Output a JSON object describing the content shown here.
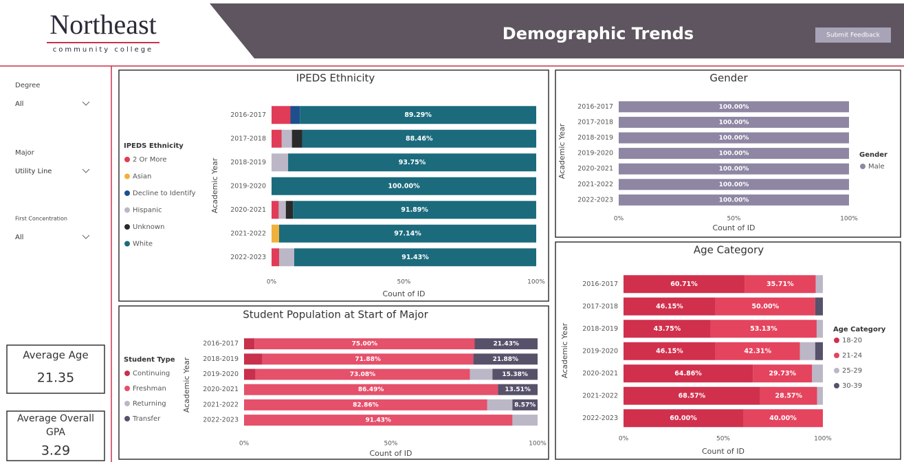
{
  "header": {
    "logo_name": "Northeast",
    "logo_sub": "community college",
    "title": "Demographic Trends",
    "button": "Submit Feedback"
  },
  "filters": [
    {
      "label": "Degree",
      "value": "All"
    },
    {
      "label": "Major",
      "value": "Utility Line"
    },
    {
      "label": "First Concentration",
      "value": "All"
    }
  ],
  "cards": [
    {
      "label": "Average Age",
      "value": "21.35"
    },
    {
      "label": "Average Overall GPA",
      "value": "3.29"
    }
  ],
  "chart_data": [
    {
      "type": "stacked_hbar",
      "title": "IPEDS Ethnicity",
      "x_label": "Count of ID",
      "y_label": "Academic Year",
      "legend_title": "IPEDS Ethnicity",
      "categories": [
        "2016-2017",
        "2017-2018",
        "2018-2019",
        "2019-2020",
        "2020-2021",
        "2021-2022",
        "2022-2023"
      ],
      "series": [
        {
          "name": "2 Or More",
          "color": "#e03c58",
          "values": [
            7.14,
            3.85,
            0,
            0,
            2.7,
            0,
            2.86
          ]
        },
        {
          "name": "Asian",
          "color": "#f0b03c",
          "values": [
            0,
            0,
            0,
            0,
            0,
            2.86,
            0
          ]
        },
        {
          "name": "Decline to Identify",
          "color": "#1d4f8c",
          "values": [
            3.57,
            0,
            0,
            0,
            0,
            0,
            0
          ]
        },
        {
          "name": "Hispanic",
          "color": "#bcb7c7",
          "values": [
            0,
            3.85,
            6.25,
            0,
            2.7,
            0,
            5.71
          ]
        },
        {
          "name": "Unknown",
          "color": "#2a2a2a",
          "values": [
            0,
            3.85,
            0,
            0,
            2.7,
            0,
            0
          ]
        },
        {
          "name": "White",
          "color": "#1b6b7d",
          "values": [
            89.29,
            88.46,
            93.75,
            100,
            91.89,
            97.14,
            91.43
          ],
          "value_labels": [
            "89.29%",
            "88.46%",
            "93.75%",
            "100.00%",
            "91.89%",
            "97.14%",
            "91.43%"
          ]
        }
      ],
      "xlim": [
        0,
        100
      ],
      "xticks": [
        {
          "value": 0,
          "label": "0%"
        },
        {
          "value": 50,
          "label": "50%"
        },
        {
          "value": 100,
          "label": "100%"
        }
      ]
    },
    {
      "type": "stacked_hbar",
      "title": "Gender",
      "x_label": "Count of ID",
      "y_label": "Academic Year",
      "legend_title": "Gender",
      "categories": [
        "2016-2017",
        "2017-2018",
        "2018-2019",
        "2019-2020",
        "2020-2021",
        "2021-2022",
        "2022-2023"
      ],
      "series": [
        {
          "name": "Male",
          "color": "#8e86a3",
          "values": [
            100,
            100,
            100,
            100,
            100,
            100,
            100
          ],
          "value_labels": [
            "100.00%",
            "100.00%",
            "100.00%",
            "100.00%",
            "100.00%",
            "100.00%",
            "100.00%"
          ]
        }
      ],
      "xlim": [
        0,
        100
      ],
      "xticks": [
        {
          "value": 0,
          "label": "0%"
        },
        {
          "value": 50,
          "label": "50%"
        },
        {
          "value": 100,
          "label": "100%"
        }
      ]
    },
    {
      "type": "stacked_hbar",
      "title": "Student Population at Start of Major",
      "x_label": "Count of ID",
      "y_label": "Academic Year",
      "legend_title": "Student Type",
      "categories": [
        "2016-2017",
        "2018-2019",
        "2019-2020",
        "2020-2021",
        "2021-2022",
        "2022-2023"
      ],
      "series": [
        {
          "name": "Continuing",
          "color": "#c8304c",
          "values": [
            3.57,
            6.25,
            3.85,
            0,
            0,
            0
          ]
        },
        {
          "name": "Freshman",
          "color": "#e5506a",
          "values": [
            75.0,
            71.88,
            73.08,
            86.49,
            82.86,
            91.43
          ],
          "value_labels": [
            "75.00%",
            "71.88%",
            "73.08%",
            "86.49%",
            "82.86%",
            "91.43%"
          ]
        },
        {
          "name": "Returning",
          "color": "#bcb7c7",
          "values": [
            0,
            0,
            7.69,
            0,
            8.57,
            8.57
          ]
        },
        {
          "name": "Transfer",
          "color": "#57516a",
          "values": [
            21.43,
            21.88,
            15.38,
            13.51,
            8.57,
            0
          ],
          "value_labels": [
            "21.43%",
            "21.88%",
            "15.38%",
            "13.51%",
            "8.57%",
            null
          ]
        }
      ],
      "xlim": [
        0,
        100
      ],
      "xticks": [
        {
          "value": 0,
          "label": "0%"
        },
        {
          "value": 50,
          "label": "50%"
        },
        {
          "value": 100,
          "label": "100%"
        }
      ]
    },
    {
      "type": "stacked_hbar",
      "title": "Age Category",
      "x_label": "Count of ID",
      "y_label": "Academic Year",
      "legend_title": "Age Category",
      "categories": [
        "2016-2017",
        "2017-2018",
        "2018-2019",
        "2019-2020",
        "2020-2021",
        "2021-2022",
        "2022-2023"
      ],
      "series": [
        {
          "name": "18-20",
          "color": "#d0304c",
          "values": [
            60.71,
            46.15,
            43.75,
            46.15,
            64.86,
            68.57,
            60.0
          ],
          "value_labels": [
            "60.71%",
            "46.15%",
            "43.75%",
            "46.15%",
            "64.86%",
            "68.57%",
            "60.00%"
          ]
        },
        {
          "name": "21-24",
          "color": "#e4445e",
          "values": [
            35.71,
            50.0,
            53.13,
            42.31,
            29.73,
            28.57,
            40.0
          ],
          "value_labels": [
            "35.71%",
            "50.00%",
            "53.13%",
            "42.31%",
            "29.73%",
            "28.57%",
            "40.00%"
          ]
        },
        {
          "name": "25-29",
          "color": "#bcb7c7",
          "values": [
            3.57,
            0,
            3.13,
            7.69,
            5.41,
            2.86,
            0
          ]
        },
        {
          "name": "30-39",
          "color": "#57516a",
          "values": [
            0,
            3.85,
            0,
            3.85,
            0,
            0,
            0
          ]
        }
      ],
      "xlim": [
        0,
        100
      ],
      "xticks": [
        {
          "value": 0,
          "label": "0%"
        },
        {
          "value": 50,
          "label": "50%"
        },
        {
          "value": 100,
          "label": "100%"
        }
      ]
    }
  ]
}
